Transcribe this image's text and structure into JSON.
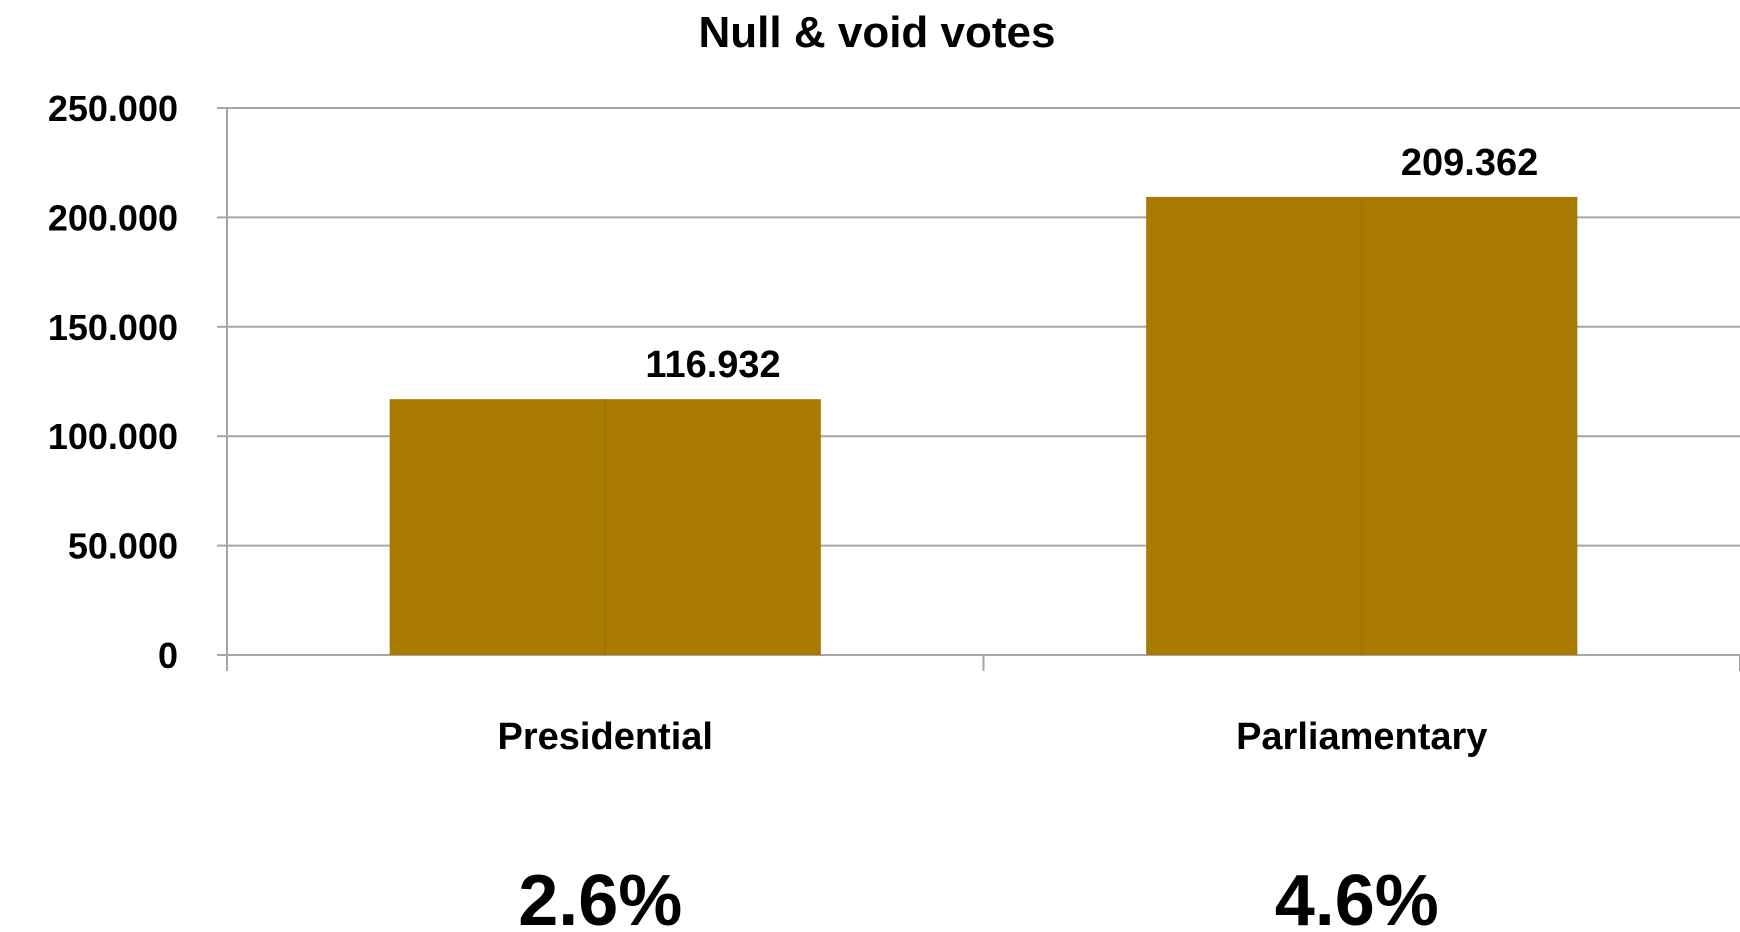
{
  "chart_data": {
    "type": "bar",
    "title": "Null & void votes",
    "xlabel": "",
    "ylabel": "",
    "categories": [
      "Presidential",
      "Parliamentary"
    ],
    "values": [
      116932,
      209362
    ],
    "value_labels": [
      "116.932",
      "209.362"
    ],
    "percentages": [
      "2.6%",
      "4.6%"
    ],
    "yticks": [
      0,
      50000,
      100000,
      150000,
      200000,
      250000
    ],
    "ytick_labels": [
      "0",
      "50.000",
      "100.000",
      "150.000",
      "200.000",
      "250.000"
    ],
    "ylim": [
      0,
      250000
    ],
    "grid": true,
    "legend": "none",
    "bar_color": "#a87a00"
  }
}
